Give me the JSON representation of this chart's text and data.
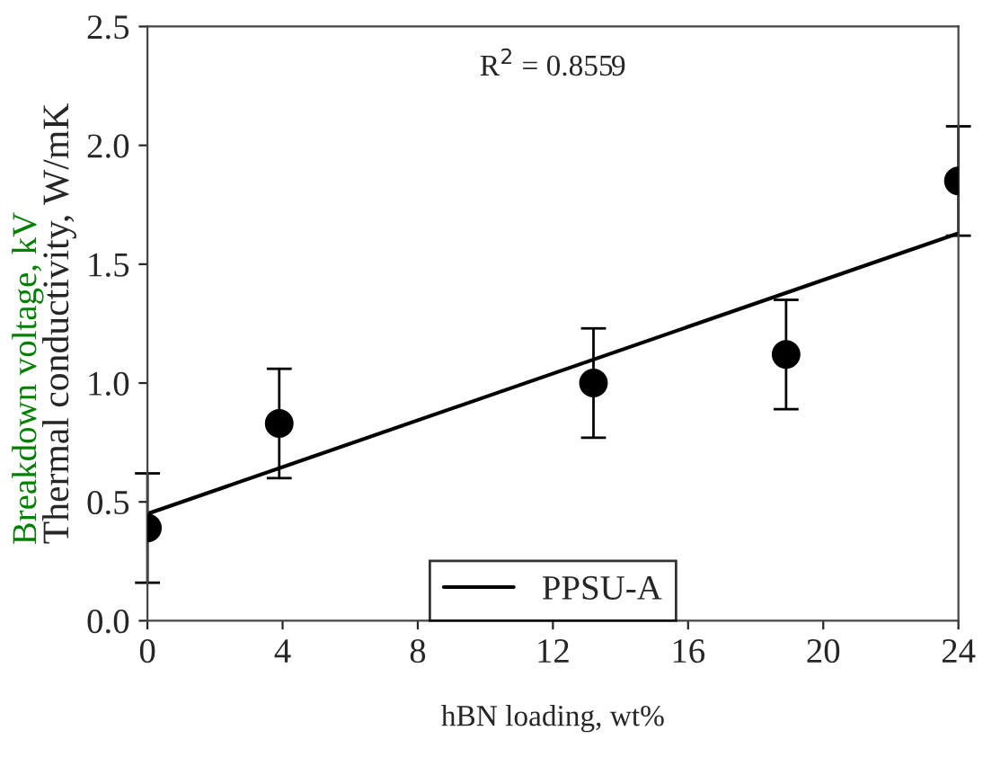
{
  "chart_data": {
    "type": "scatter",
    "xlabel": "hBN loading, wt%",
    "ylabel": "Thermal conductivity, W/mK",
    "annotations": [
      "R$^{2}$ = 0.8559",
      "Breakdown voltage, kV"
    ],
    "xlim": [
      0,
      24
    ],
    "xticks": [
      0,
      4,
      8,
      12,
      16,
      20,
      24
    ],
    "ylim": [
      0,
      2.5
    ],
    "yticks": [
      {
        "value": 0,
        "label": "0.0"
      },
      {
        "value": 0.5,
        "label": "0.5"
      },
      {
        "value": 1,
        "label": "1.0"
      },
      {
        "value": 1.5,
        "label": "1.5"
      },
      {
        "value": 2,
        "label": "2.0"
      },
      {
        "value": 2.5,
        "label": "2.5"
      }
    ],
    "legend": "bottom",
    "grid": false,
    "series": [
      {
        "color": "#000000",
        "marker": "circle",
        "x": [
          0,
          3.9,
          13.2,
          18.9,
          24
        ],
        "values": [
          0.39,
          0.83,
          1.0,
          1.12,
          1.85
        ],
        "errors": [
          0.23,
          0.23,
          0.23,
          0.23,
          0.23
        ]
      },
      {
        "type": "line",
        "name": "PPSU-A",
        "color": "#000000",
        "marker": "none",
        "line_style": "solid",
        "x": [
          0,
          24
        ],
        "values": [
          0.45,
          1.63
        ]
      }
    ]
  }
}
